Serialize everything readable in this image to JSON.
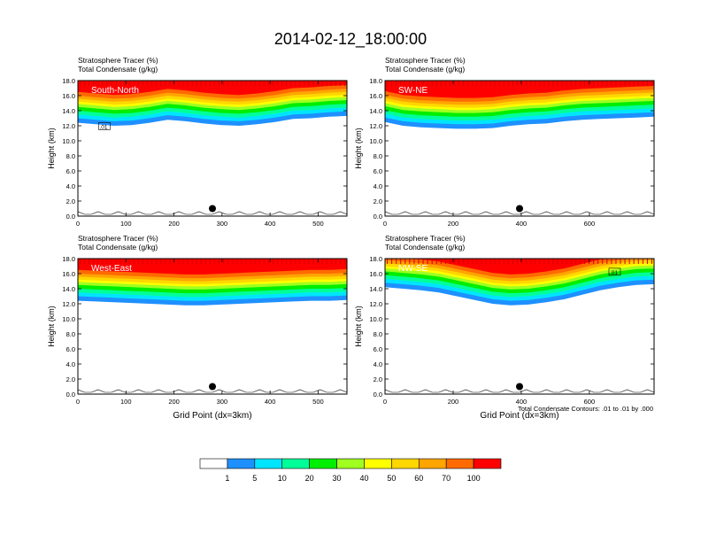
{
  "title": "2014-02-12_18:00:00",
  "colors": {
    "levels": [
      "#ffffff",
      "#1e90ff",
      "#00e5ff",
      "#00ff99",
      "#00ee00",
      "#a0ff20",
      "#ffff00",
      "#ffd700",
      "#ffa500",
      "#ff6a00",
      "#ff0000"
    ]
  },
  "chart_data": [
    {
      "type": "heatmap",
      "panel": "South-North",
      "subtitle_line1": "Stratosphere Tracer   (%)",
      "subtitle_line2": "Total Condensate   (g/kg)",
      "ylabel": "Height (km)",
      "xlabel": "",
      "xlim": [
        0,
        560
      ],
      "xticks": [
        "0",
        "100",
        "200",
        "300",
        "400",
        "500"
      ],
      "ylim": [
        0,
        18
      ],
      "yticks": [
        "0.0",
        "2.0",
        "4.0",
        "6.0",
        "8.0",
        "10.0",
        "12.0",
        "14.0",
        "16.0",
        "18.0"
      ],
      "contour_label": ".01",
      "contour_label_x": 45,
      "contour_label_y": 11.6,
      "marker_x": 280,
      "marker_y": 1.0,
      "tracer_base_km": [
        12.4,
        12.2,
        12.0,
        12.1,
        12.4,
        12.8,
        12.6,
        12.3,
        12.1,
        12.0,
        12.2,
        12.5,
        12.9,
        13.0,
        13.2,
        13.3
      ]
    },
    {
      "type": "heatmap",
      "panel": "SW-NE",
      "subtitle_line1": "Stratosphere Tracer   (%)",
      "subtitle_line2": "Total Condensate   (g/kg)",
      "ylabel": "Height (km)",
      "xlabel": "",
      "xlim": [
        0,
        790
      ],
      "xticks": [
        "0",
        "200",
        "400",
        "600"
      ],
      "ylim": [
        0,
        18
      ],
      "yticks": [
        "0.0",
        "2.0",
        "4.0",
        "6.0",
        "8.0",
        "10.0",
        "12.0",
        "14.0",
        "16.0",
        "18.0"
      ],
      "contour_label": "",
      "marker_x": 395,
      "marker_y": 1.0,
      "tracer_base_km": [
        12.5,
        12.0,
        11.8,
        11.7,
        11.6,
        11.6,
        11.7,
        12.0,
        12.2,
        12.3,
        12.6,
        12.8,
        12.9,
        13.0,
        13.1,
        13.2
      ]
    },
    {
      "type": "heatmap",
      "panel": "West-East",
      "subtitle_line1": "Stratosphere Tracer   (%)",
      "subtitle_line2": "Total Condensate   (g/kg)",
      "ylabel": "Height (km)",
      "xlabel": "Grid Point (dx=3km)",
      "xlim": [
        0,
        560
      ],
      "xticks": [
        "0",
        "100",
        "200",
        "300",
        "400",
        "500"
      ],
      "ylim": [
        0,
        18
      ],
      "yticks": [
        "0.0",
        "2.0",
        "4.0",
        "6.0",
        "8.0",
        "10.0",
        "12.0",
        "14.0",
        "16.0",
        "18.0"
      ],
      "contour_label": "",
      "marker_x": 280,
      "marker_y": 1.0,
      "tracer_base_km": [
        12.4,
        12.3,
        12.2,
        12.1,
        12.0,
        11.9,
        11.8,
        11.8,
        11.9,
        12.0,
        12.1,
        12.2,
        12.3,
        12.4,
        12.4,
        12.5
      ]
    },
    {
      "type": "heatmap",
      "panel": "NW-SE",
      "subtitle_line1": "Stratosphere Tracer   (%)",
      "subtitle_line2": "Total Condensate   (g/kg)",
      "ylabel": "Height (km)",
      "xlabel": "Grid Point (dx=3km)",
      "xlim": [
        0,
        790
      ],
      "xticks": [
        "0",
        "200",
        "400",
        "600"
      ],
      "ylim": [
        0,
        18
      ],
      "yticks": [
        "0.0",
        "2.0",
        "4.0",
        "6.0",
        "8.0",
        "10.0",
        "12.0",
        "14.0",
        "16.0",
        "18.0"
      ],
      "contour_label": ".01",
      "contour_label_x": 660,
      "contour_label_y": 15.9,
      "marker_x": 395,
      "marker_y": 1.0,
      "tracer_base_km": [
        14.2,
        14.0,
        13.8,
        13.5,
        13.0,
        12.5,
        12.0,
        11.8,
        11.9,
        12.2,
        12.6,
        13.2,
        13.8,
        14.2,
        14.5,
        14.6
      ]
    }
  ],
  "footnote": "Total Condensate Contours: .01 to .01 by .000",
  "colorbar": {
    "labels": [
      "1",
      "5",
      "10",
      "20",
      "30",
      "40",
      "50",
      "60",
      "70",
      "100"
    ]
  }
}
